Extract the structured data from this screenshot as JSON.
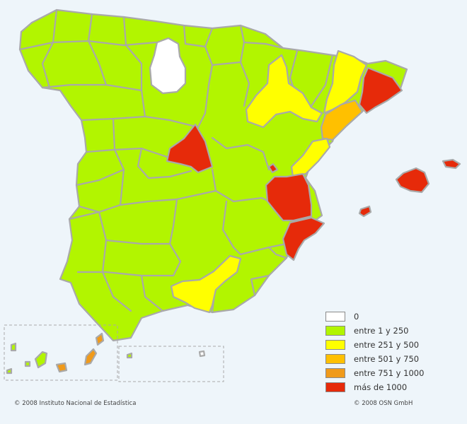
{
  "colors": {
    "background": "#eef5fa",
    "border": "#a9a9a9",
    "c0": "#ffffff",
    "c1": "#b2f500",
    "c2": "#ffff00",
    "c3": "#ffc000",
    "c4": "#f09a1a",
    "c5": "#e62a0a"
  },
  "legend": {
    "items": [
      {
        "label": "0",
        "color": "#ffffff"
      },
      {
        "label": "entre 1 y 250",
        "color": "#b2f500"
      },
      {
        "label": "entre 251 y 500",
        "color": "#ffff00"
      },
      {
        "label": "entre 501 y 750",
        "color": "#ffc000"
      },
      {
        "label": "entre 751 y 1000",
        "color": "#f09a1a"
      },
      {
        "label": "más de 1000",
        "color": "#e62a0a"
      }
    ]
  },
  "credits": {
    "left": "© 2008 Instituto Nacional de Estadística",
    "right": "© 2008 OSN GmbH"
  }
}
